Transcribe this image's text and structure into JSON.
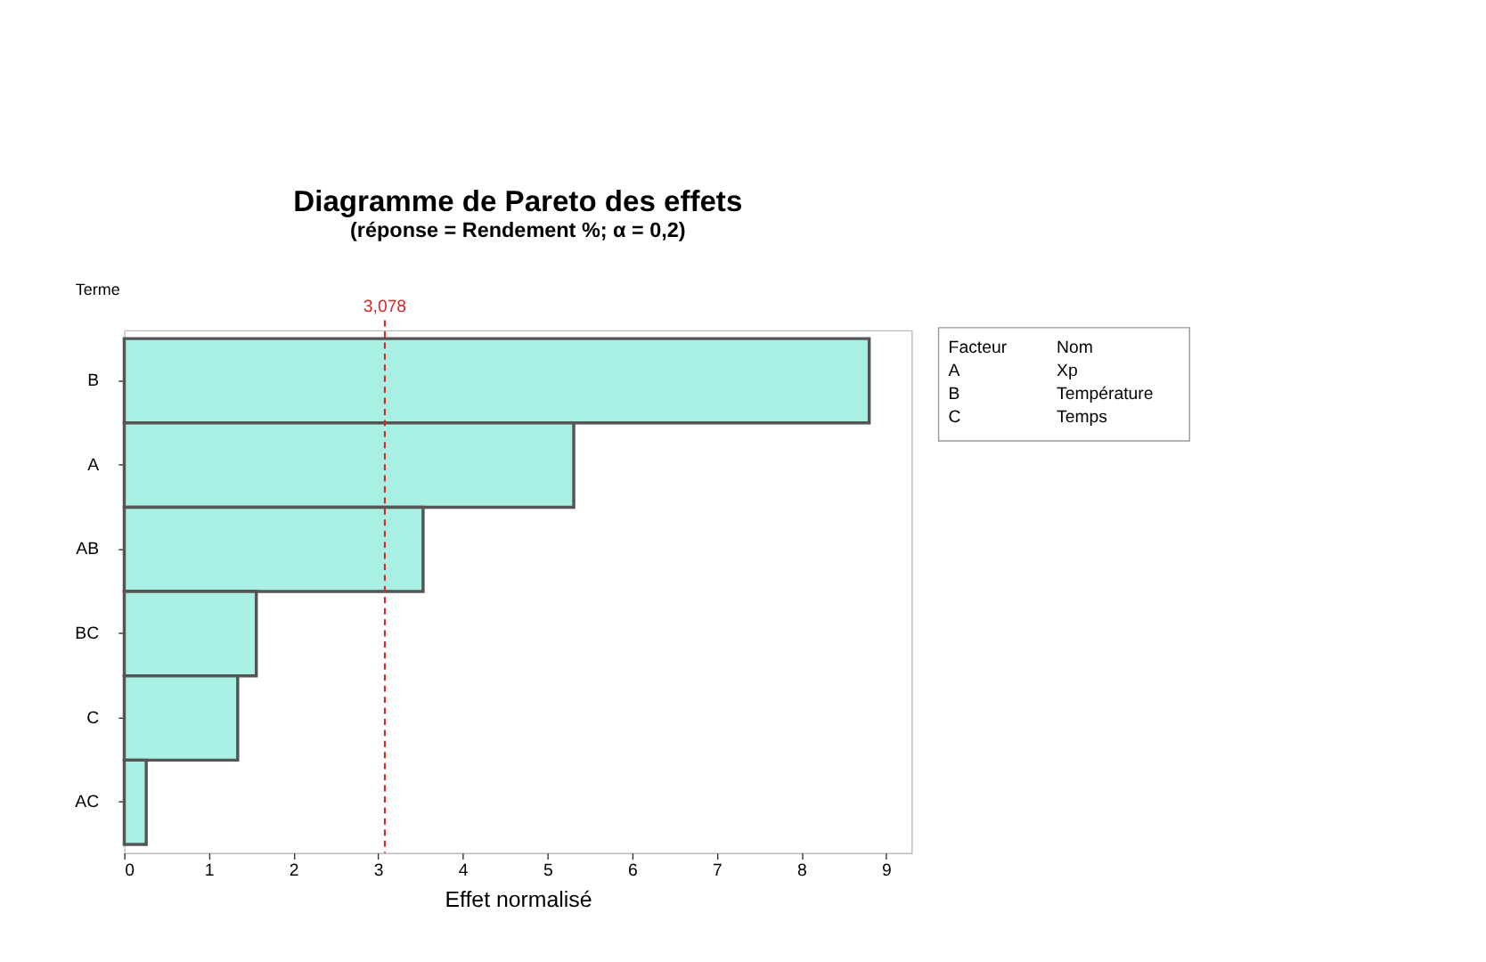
{
  "chart_data": {
    "type": "bar",
    "orientation": "horizontal",
    "title": "Diagramme de Pareto des effets",
    "subtitle": "(réponse = Rendement %; α = 0,2)",
    "xlabel": "Effet normalisé",
    "ylabel": "Terme",
    "categories": [
      "B",
      "A",
      "AB",
      "BC",
      "C",
      "AC"
    ],
    "values": [
      8.8,
      5.31,
      3.53,
      1.56,
      1.34,
      0.26
    ],
    "color": "#a8efe4",
    "xlim": [
      0,
      9.3
    ],
    "xticks": [
      0,
      1,
      2,
      3,
      4,
      5,
      6,
      7,
      8,
      9
    ],
    "ref_lines": [
      {
        "axis": "x",
        "value": 3.078,
        "label": "3,078",
        "color": "#d62728",
        "line_style": "dashed"
      }
    ],
    "annotations": [
      "Facteur",
      "Nom",
      "A",
      "Xp",
      "B",
      "Température",
      "C",
      "Temps"
    ],
    "grid": false
  }
}
